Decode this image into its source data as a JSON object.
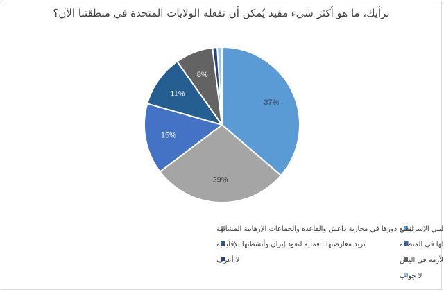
{
  "chart_data": {
    "type": "pie",
    "title": "برأيك، ما هو أكثر شيء مفيد يُمكن أن تفعله الولايات المتحدة في منطقتنا الآن؟",
    "slices": [
      {
        "label": "تضغط أكثر لحل الصراع الفلسطيني الإسرائيلي",
        "value": 37,
        "value_label": "37%",
        "color": "#5b9bd5"
      },
      {
        "label": "توسع دورها في محاربة داعش والقاعدة والجماعات الإرهابية المشابهة",
        "value": 29,
        "value_label": "29%",
        "color": "#a5a5a5"
      },
      {
        "label": "تُقلل من تدخلها في المنطقة",
        "value": 15,
        "value_label": "15%",
        "color": "#4472c4"
      },
      {
        "label": "تزيد معارضتها العملية لنفوذ إيران وأنشطتها الإقليمية",
        "value": 11,
        "value_label": "11%",
        "color": "#255e91"
      },
      {
        "label": "تعمل أكثر لإيجاد حل دبلوماسي للأزمة في اليمن",
        "value": 8,
        "value_label": "8%",
        "color": "#636363"
      },
      {
        "label": "لا أعرف",
        "value": 1,
        "value_label": "",
        "color": "#264478"
      },
      {
        "label": "لا جواب",
        "value": 1,
        "value_label": "",
        "color": "#9dc3e6"
      }
    ],
    "legend_position": "bottom"
  }
}
